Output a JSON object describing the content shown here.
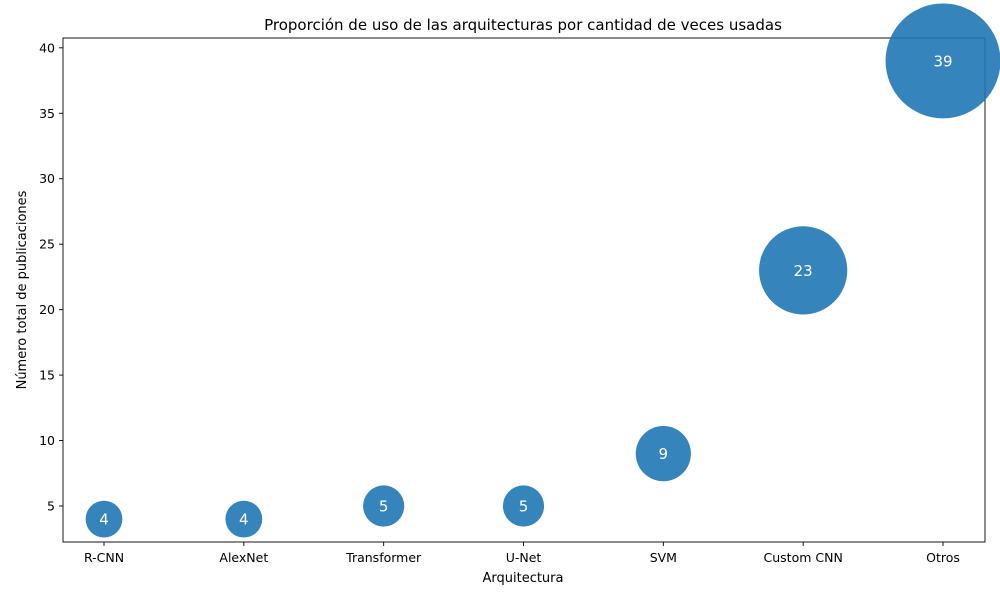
{
  "chart_data": {
    "type": "scatter",
    "title": "Proporción de uso de las arquitecturas por cantidad de veces usadas",
    "xlabel": "Arquitectura",
    "ylabel": "Número total de publicaciones",
    "categories": [
      "R-CNN",
      "AlexNet",
      "Transformer",
      "U-Net",
      "SVM",
      "Custom CNN",
      "Otros"
    ],
    "values": [
      4,
      4,
      5,
      5,
      9,
      23,
      39
    ],
    "point_labels": [
      "4",
      "4",
      "5",
      "5",
      "9",
      "23",
      "39"
    ],
    "ylim": [
      2.25,
      40.75
    ],
    "yticks": [
      5,
      10,
      15,
      20,
      25,
      30,
      35,
      40
    ],
    "bubble_size_encodes": "values",
    "bubble_color": "#1f77b4",
    "bubble_alpha": 0.9,
    "grid": false,
    "legend": "none"
  }
}
